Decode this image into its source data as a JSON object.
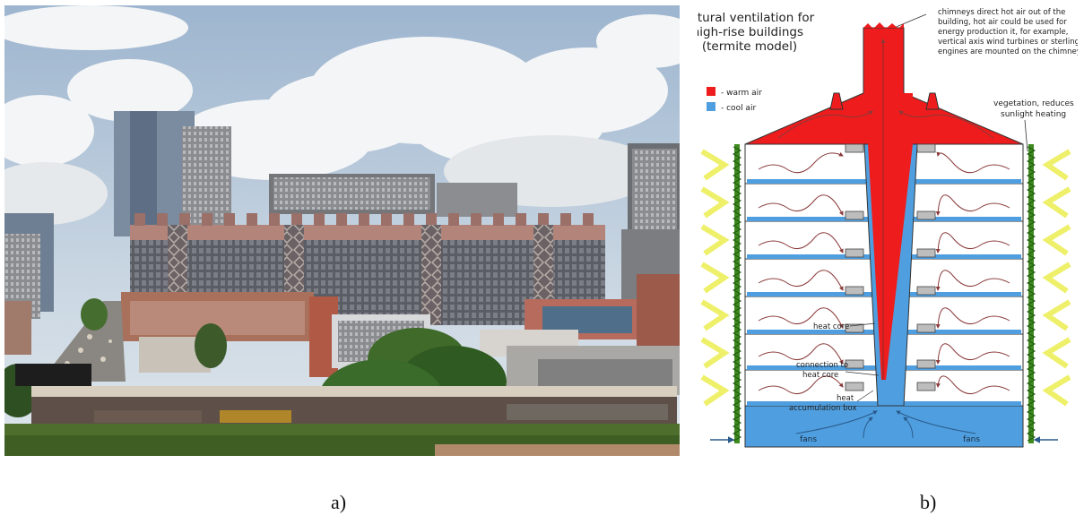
{
  "captions": {
    "a": "a)",
    "b": "b)"
  },
  "diagram": {
    "title_lines": [
      "Natural ventilation for",
      "high-rise buildings",
      "(termite model)"
    ],
    "chimney_note_lines": [
      "chimneys direct hot air out of the",
      "building, hot air could be used for",
      "energy production it, for example,",
      "vertical axis wind turbines or sterling",
      "engines are mounted on the chimneys"
    ],
    "legend": {
      "warm": "- warm air",
      "cool": "- cool air"
    },
    "vegetation_note_lines": [
      "vegetation, reduces",
      "sunlight heating"
    ],
    "labels": {
      "heat_core": "heat core",
      "connection_lines": [
        "connection to",
        "heat core"
      ],
      "accumulation_lines": [
        "heat",
        "accumulation box"
      ],
      "fans_left": "fans",
      "fans_right": "fans"
    },
    "colors": {
      "warm": "#ee1c1c",
      "cool": "#4f9fe0",
      "vegetation": "#3f8a1f",
      "sun_arrow": "#eef06a"
    }
  }
}
